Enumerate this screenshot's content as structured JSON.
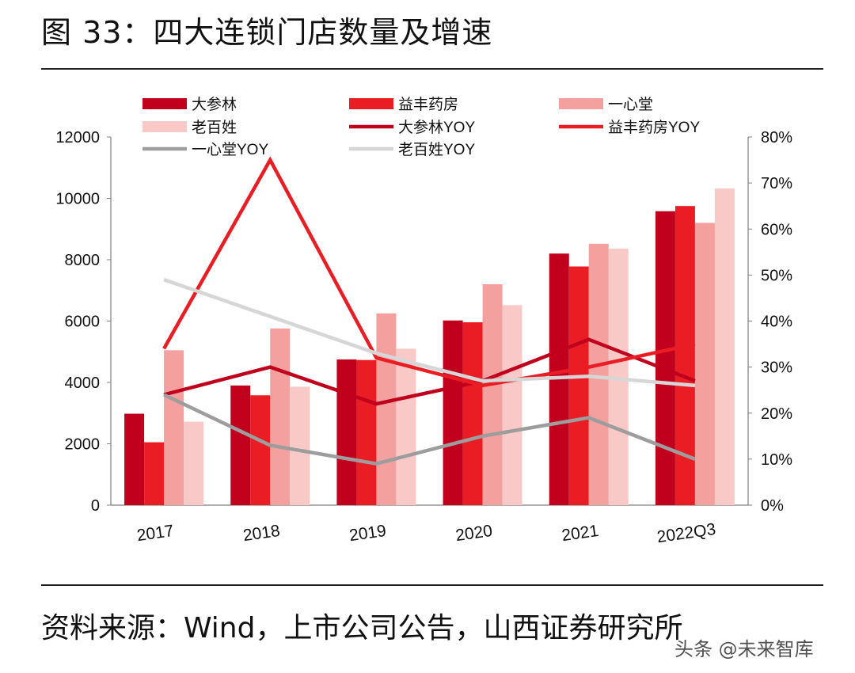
{
  "figure_title": "图 33：四大连锁门店数量及增速",
  "source_note": "资料来源：Wind，上市公司公告，山西证券研究所",
  "watermark": "头条 @未来智库",
  "chart_data": {
    "type": "bar",
    "categories": [
      "2017",
      "2018",
      "2019",
      "2020",
      "2021",
      "2022Q3"
    ],
    "ylim_left": [
      0,
      12000
    ],
    "yticks_left": [
      "0",
      "2000",
      "4000",
      "6000",
      "8000",
      "10000",
      "12000"
    ],
    "ylim_right": [
      0,
      80
    ],
    "yticks_right": [
      "0%",
      "10%",
      "20%",
      "30%",
      "40%",
      "50%",
      "60%",
      "70%",
      "80%"
    ],
    "bar_series": [
      {
        "name": "大参林",
        "color": "#c0001c",
        "values": [
          2980,
          3900,
          4750,
          6020,
          8200,
          9580
        ]
      },
      {
        "name": "益丰药房",
        "color": "#ea1d25",
        "values": [
          2050,
          3580,
          4730,
          5960,
          7780,
          9750
        ]
      },
      {
        "name": "一心堂",
        "color": "#f3a09e",
        "values": [
          5050,
          5760,
          6250,
          7200,
          8520,
          9200
        ]
      },
      {
        "name": "老百姓",
        "color": "#f8c9c7",
        "values": [
          2720,
          3860,
          5100,
          6520,
          8360,
          10320
        ]
      }
    ],
    "line_series": [
      {
        "name": "大参林YOY",
        "color": "#c0001c",
        "values": [
          24,
          30,
          22,
          27,
          36,
          27
        ]
      },
      {
        "name": "益丰药房YOY",
        "color": "#ea1d25",
        "values": [
          34,
          75,
          32,
          26,
          30,
          35
        ]
      },
      {
        "name": "一心堂YOY",
        "color": "#9d9d9d",
        "values": [
          24,
          13,
          9,
          15,
          19,
          10
        ]
      },
      {
        "name": "老百姓YOY",
        "color": "#d6d6d6",
        "values": [
          49,
          41,
          33,
          27,
          28,
          26
        ]
      }
    ],
    "legend_order": [
      "大参林",
      "益丰药房",
      "一心堂",
      "老百姓",
      "大参林YOY",
      "益丰药房YOY",
      "一心堂YOY",
      "老百姓YOY"
    ]
  }
}
